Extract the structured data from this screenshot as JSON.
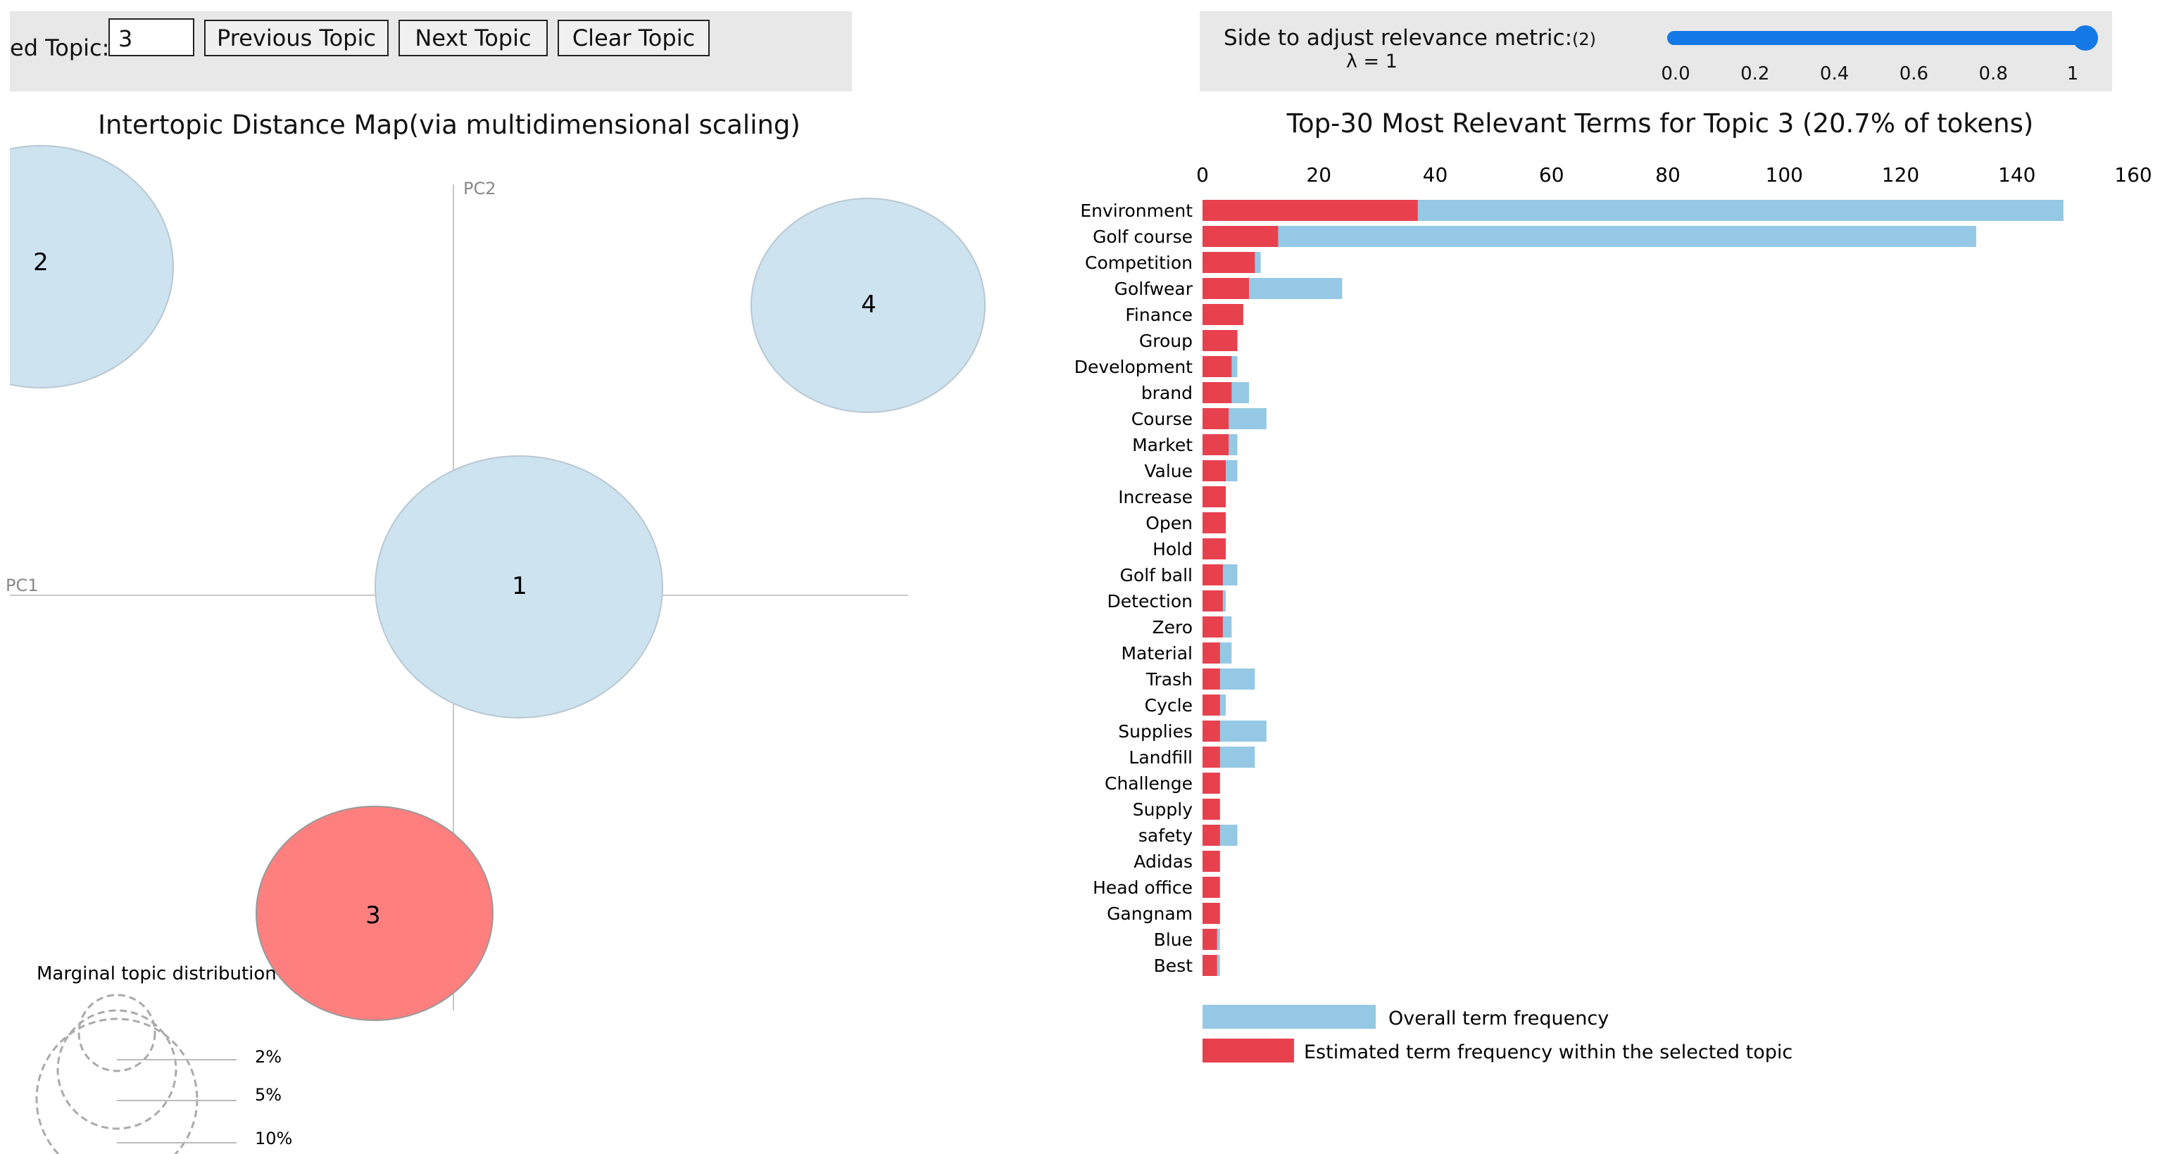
{
  "controls": {
    "selected_topic_label": "ed Topic:",
    "selected_topic_value": "3",
    "previous_label": "Previous Topic",
    "next_label": "Next Topic",
    "clear_label": "Clear Topic"
  },
  "slider": {
    "title": "Side to adjust relevance metric:",
    "title_count": "(2)",
    "lambda_label": "λ = 1",
    "value": 1,
    "min": 0,
    "max": 1,
    "ticks": [
      "0.0",
      "0.2",
      "0.4",
      "0.6",
      "0.8",
      "1"
    ],
    "accent_color": "#1478e6"
  },
  "map": {
    "title": "Intertopic Distance Map(via multidimensional scaling)",
    "axis_x_label": "PC1",
    "axis_y_label": "PC2",
    "topics": [
      {
        "label": "1",
        "selected": false
      },
      {
        "label": "2",
        "selected": false
      },
      {
        "label": "3",
        "selected": true
      },
      {
        "label": "4",
        "selected": false
      }
    ],
    "legend_title": "Marginal topic distribution",
    "legend_items": [
      "2%",
      "5%",
      "10%"
    ],
    "topic_color": "#cde3ef",
    "selected_color": "#ff7f7f"
  },
  "chart_data": {
    "type": "bar",
    "orientation": "horizontal",
    "title": "Top-30 Most Relevant Terms for Topic 3 (20.7% of tokens)",
    "xlim": [
      0,
      160
    ],
    "xticks": [
      0,
      20,
      40,
      60,
      80,
      100,
      120,
      140,
      160
    ],
    "categories": [
      "Environment",
      "Golf course",
      "Competition",
      "Golfwear",
      "Finance",
      "Group",
      "Development",
      "brand",
      "Course",
      "Market",
      "Value",
      "Increase",
      "Open",
      "Hold",
      "Golf ball",
      "Detection",
      "Zero",
      "Material",
      "Trash",
      "Cycle",
      "Supplies",
      "Landfill",
      "Challenge",
      "Supply",
      "safety",
      "Adidas",
      "Head office",
      "Gangnam",
      "Blue",
      "Best"
    ],
    "series": [
      {
        "name": "Overall term frequency",
        "color": "#95c8e4",
        "values": [
          148,
          133,
          10,
          24,
          7,
          6,
          6,
          8,
          11,
          6,
          6,
          4,
          4,
          4,
          6,
          4,
          5,
          5,
          9,
          4,
          11,
          9,
          3,
          3,
          6,
          3,
          3,
          3,
          3,
          3
        ]
      },
      {
        "name": "Estimated term frequency within the selected topic",
        "color": "#e8414e",
        "values": [
          37,
          13,
          9,
          8,
          7,
          6,
          5,
          5,
          4.5,
          4.5,
          4,
          4,
          4,
          4,
          3.5,
          3.5,
          3.5,
          3,
          3,
          3,
          3,
          3,
          3,
          3,
          3,
          3,
          3,
          3,
          2.5,
          2.5
        ]
      }
    ],
    "legend": [
      "Overall term frequency",
      "Estimated term frequency within the selected topic"
    ]
  }
}
